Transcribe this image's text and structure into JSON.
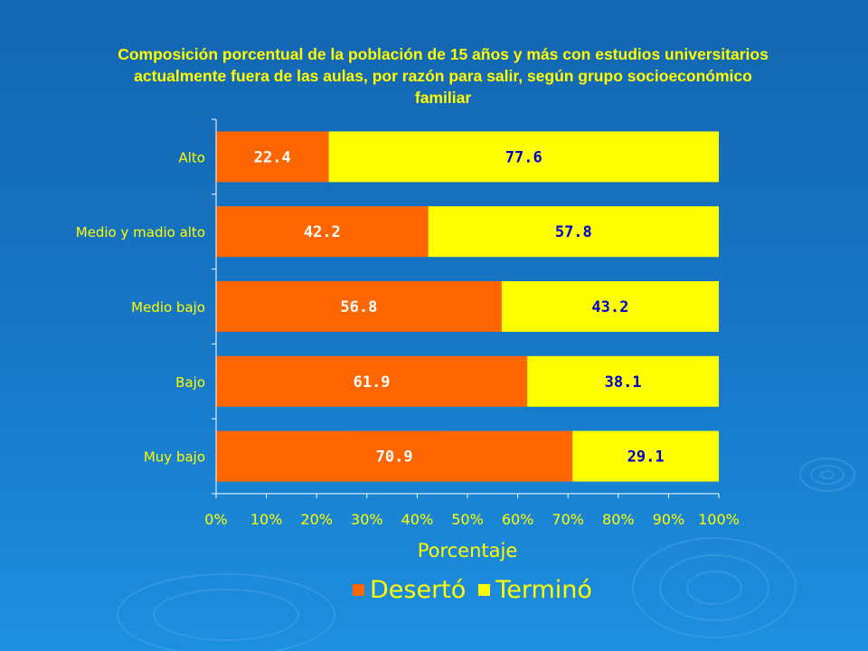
{
  "chart_data": {
    "type": "bar",
    "orientation": "horizontal",
    "stacked": true,
    "title": "Composición porcentual de la población de 15 años y más con estudios universitarios actualmente fuera de las aulas, por razón para salir, según grupo socioeconómico familiar",
    "xlabel": "Porcentaje",
    "ylabel": "",
    "xlim": [
      0,
      100
    ],
    "x_ticks": [
      "0%",
      "10%",
      "20%",
      "30%",
      "40%",
      "50%",
      "60%",
      "70%",
      "80%",
      "90%",
      "100%"
    ],
    "categories": [
      "Alto",
      "Medio y madio alto",
      "Medio bajo",
      "Bajo",
      "Muy bajo"
    ],
    "series": [
      {
        "name": "Desertó",
        "values": [
          22.4,
          42.2,
          56.8,
          61.9,
          70.9
        ],
        "color": "#ff6600",
        "label_color": "#ffffff"
      },
      {
        "name": "Terminó",
        "values": [
          77.6,
          57.8,
          43.2,
          38.1,
          29.1
        ],
        "color": "#ffff00",
        "label_color": "#0000cc"
      }
    ],
    "data_labels": [
      [
        "22.4",
        "42.2",
        "56.8",
        "61.9",
        "70.9"
      ],
      [
        "77.6",
        "57.8",
        "43.2",
        "38.1",
        "29.1"
      ]
    ],
    "grid": false,
    "legend_position": "bottom",
    "colors": {
      "axis": "#ffffff",
      "text": "#ffff00"
    }
  }
}
